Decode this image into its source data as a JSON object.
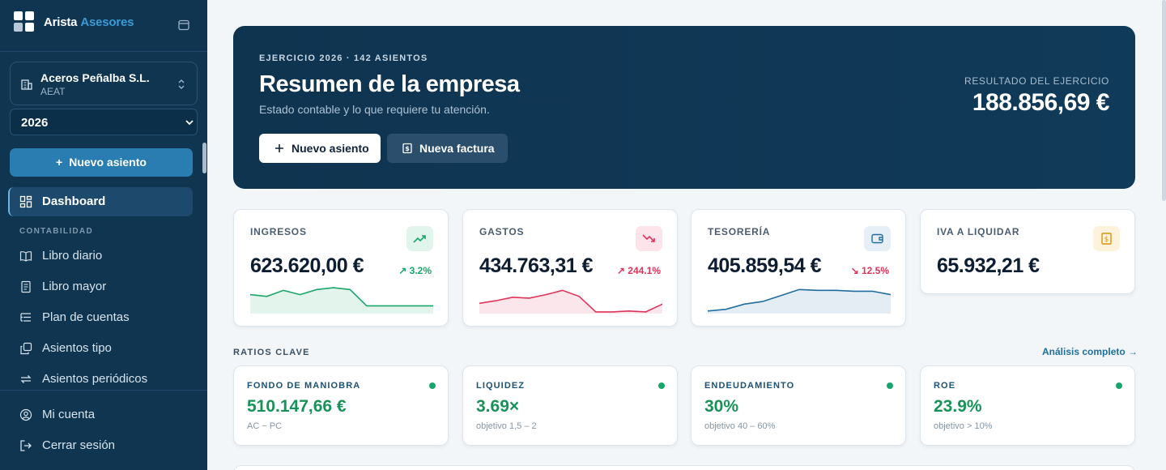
{
  "brand": {
    "name": "Arista",
    "accent": "Asesores"
  },
  "company": {
    "name": "Aceros Peñalba S.L.",
    "subtitle": "AEAT"
  },
  "year_select": {
    "value": "2026"
  },
  "new_entry_button": {
    "label": "Nuevo asiento"
  },
  "nav": {
    "dashboard": {
      "label": "Dashboard",
      "icon": "dashboard-icon"
    },
    "section_label": "CONTABILIDAD",
    "items": [
      {
        "label": "Libro diario",
        "icon": "book-open-icon"
      },
      {
        "label": "Libro mayor",
        "icon": "ledger-icon"
      },
      {
        "label": "Plan de cuentas",
        "icon": "list-tree-icon"
      },
      {
        "label": "Asientos tipo",
        "icon": "copy-icon"
      },
      {
        "label": "Asientos periódicos",
        "icon": "repeat-icon"
      }
    ],
    "footer": [
      {
        "label": "Mi cuenta",
        "icon": "user-circle-icon"
      },
      {
        "label": "Cerrar sesión",
        "icon": "logout-icon"
      }
    ]
  },
  "hero": {
    "eyebrow": "EJERCICIO 2026 · 142 ASIENTOS",
    "title": "Resumen de la empresa",
    "subtitle": "Estado contable y lo que requiere tu atención.",
    "primary_button": "Nuevo asiento",
    "secondary_button": "Nueva factura",
    "result_label": "RESULTADO DEL EJERCICIO",
    "result_value": "188.856,69 €"
  },
  "kpis": [
    {
      "label": "INGRESOS",
      "value": "623.620,00 €",
      "delta": "3.2%",
      "trend": "up",
      "color": "#19a66a",
      "icon": "trending-up-icon",
      "sparkline": [
        22,
        20,
        27,
        22,
        28,
        30,
        28,
        9,
        9,
        9,
        9,
        9
      ]
    },
    {
      "label": "GASTOS",
      "value": "434.763,31 €",
      "delta": "244.1%",
      "trend": "up",
      "color": "#e0335a",
      "icon": "trending-down-icon",
      "sparkline": [
        12,
        15,
        19,
        18,
        22,
        27,
        20,
        2,
        2,
        3,
        2,
        11
      ]
    },
    {
      "label": "TESORERÍA",
      "value": "405.859,54 €",
      "delta": "12.5%",
      "trend": "down",
      "color": "#1f6e9f",
      "icon": "wallet-icon",
      "sparkline": [
        3,
        5,
        11,
        14,
        21,
        28,
        27,
        27,
        26,
        26,
        22
      ]
    },
    {
      "label": "IVA A LIQUIDAR",
      "value": "65.932,21 €",
      "color": "#d9930f",
      "icon": "receipt-icon"
    }
  ],
  "ratios": {
    "title": "RATIOS CLAVE",
    "link": "Análisis completo →",
    "items": [
      {
        "label": "FONDO DE MANIOBRA",
        "value": "510.147,66 €",
        "sub": "AC − PC"
      },
      {
        "label": "LIQUIDEZ",
        "value": "3.69×",
        "sub": "objetivo 1,5 – 2"
      },
      {
        "label": "ENDEUDAMIENTO",
        "value": "30%",
        "sub": "objetivo 40 – 60%"
      },
      {
        "label": "ROE",
        "value": "23.9%",
        "sub": "objetivo > 10%"
      }
    ]
  }
}
